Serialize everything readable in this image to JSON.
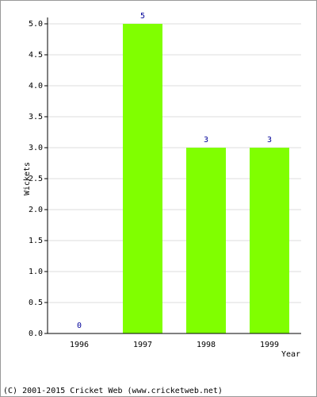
{
  "chart_data": {
    "type": "bar",
    "categories": [
      "1996",
      "1997",
      "1998",
      "1999"
    ],
    "values": [
      0,
      5,
      3,
      3
    ],
    "color": "#80ff00",
    "value_label_color": "#000099",
    "ylim": [
      0,
      5
    ],
    "yticks": [
      {
        "value": 0,
        "label": "0.0"
      },
      {
        "value": 0.5,
        "label": "0.5"
      },
      {
        "value": 1,
        "label": "1.0"
      },
      {
        "value": 1.5,
        "label": "1.5"
      },
      {
        "value": 2,
        "label": "2.0"
      },
      {
        "value": 2.5,
        "label": "2.5"
      },
      {
        "value": 3,
        "label": "3.0"
      },
      {
        "value": 3.5,
        "label": "3.5"
      },
      {
        "value": 4,
        "label": "4.0"
      },
      {
        "value": 4.5,
        "label": "4.5"
      },
      {
        "value": 5,
        "label": "5.0"
      }
    ],
    "grid": true,
    "y_label": "Wickets",
    "x_label": "Year",
    "footer": "(C) 2001-2015 Cricket Web (www.cricketweb.net)"
  }
}
